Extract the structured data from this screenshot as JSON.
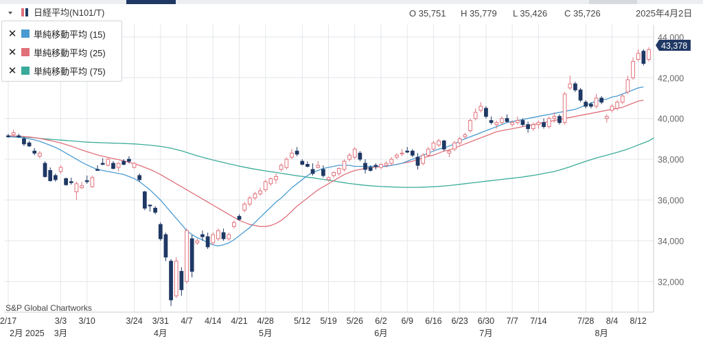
{
  "header": {
    "title": "日経平均(N101/T)",
    "open": "O 35,751",
    "high": "H 35,779",
    "low": "L 35,426",
    "close": "C 35,726",
    "date": "2025年4月2日",
    "last_price": "43,378"
  },
  "legend": {
    "items": [
      {
        "label": "単純移動平均 (15)",
        "color": "#4a9bd1"
      },
      {
        "label": "単純移動平均 (25)",
        "color": "#e0707a"
      },
      {
        "label": "単純移動平均 (75)",
        "color": "#3aab9a"
      }
    ]
  },
  "watermark": "S&P Global Chartworks",
  "colors": {
    "up": "#e0707a",
    "down": "#1f3864",
    "grid": "#e4e6ea",
    "price_tag": "#1f3864"
  },
  "chart_data": {
    "type": "candlestick",
    "yticks": [
      "44,000",
      "42,000",
      "40,000",
      "38,000",
      "36,000",
      "34,000",
      "32,000"
    ],
    "ytick_values": [
      44000,
      42000,
      40000,
      38000,
      36000,
      34000,
      32000
    ],
    "ylim": [
      30500,
      44600
    ],
    "xticks": [
      "2/17",
      "3/3",
      "3/10",
      "3/24",
      "3/31",
      "4/7",
      "4/14",
      "4/21",
      "4/28",
      "5/12",
      "5/19",
      "5/26",
      "6/2",
      "6/9",
      "6/16",
      "6/23",
      "6/30",
      "7/7",
      "7/14",
      "7/28",
      "8/4",
      "8/12"
    ],
    "xtick_index": [
      0,
      10,
      15,
      24,
      29,
      34,
      39,
      44,
      49,
      56,
      61,
      66,
      71,
      76,
      81,
      86,
      91,
      96,
      101,
      110,
      115,
      120
    ],
    "month_labels": [
      "2月 2025",
      "3月",
      "4月",
      "5月",
      "6月",
      "7月",
      "8月"
    ],
    "month_index": [
      0,
      10,
      29,
      49,
      71,
      91,
      113
    ],
    "candles": [
      {
        "o": 39150,
        "h": 39250,
        "l": 39050,
        "c": 39100
      },
      {
        "o": 39200,
        "h": 39450,
        "l": 39100,
        "c": 39300
      },
      {
        "o": 39150,
        "h": 39250,
        "l": 39050,
        "c": 39100
      },
      {
        "o": 39000,
        "h": 39100,
        "l": 38650,
        "c": 38750
      },
      {
        "o": 38800,
        "h": 38900,
        "l": 38600,
        "c": 38650
      },
      {
        "o": 38400,
        "h": 38550,
        "l": 38200,
        "c": 38300
      },
      {
        "o": 38150,
        "h": 38400,
        "l": 38050,
        "c": 38300
      },
      {
        "o": 37800,
        "h": 37900,
        "l": 37100,
        "c": 37150
      },
      {
        "o": 37450,
        "h": 37600,
        "l": 36900,
        "c": 36950
      },
      {
        "o": 37200,
        "h": 37300,
        "l": 36900,
        "c": 37000
      },
      {
        "o": 37400,
        "h": 37700,
        "l": 37300,
        "c": 37600
      },
      {
        "o": 37050,
        "h": 37100,
        "l": 36700,
        "c": 36750
      },
      {
        "o": 36900,
        "h": 37100,
        "l": 36750,
        "c": 36850
      },
      {
        "o": 36400,
        "h": 36900,
        "l": 36000,
        "c": 36800
      },
      {
        "o": 36600,
        "h": 36900,
        "l": 36550,
        "c": 36700
      },
      {
        "o": 36950,
        "h": 37200,
        "l": 36800,
        "c": 36900
      },
      {
        "o": 36650,
        "h": 37200,
        "l": 36600,
        "c": 37100
      },
      {
        "o": 37500,
        "h": 37700,
        "l": 37450,
        "c": 37450
      },
      {
        "o": 37800,
        "h": 38050,
        "l": 37700,
        "c": 37750
      },
      {
        "o": 37700,
        "h": 38050,
        "l": 37650,
        "c": 38000
      },
      {
        "o": 37800,
        "h": 37900,
        "l": 37500,
        "c": 37550
      },
      {
        "o": 37600,
        "h": 37850,
        "l": 37400,
        "c": 37800
      },
      {
        "o": 37900,
        "h": 38000,
        "l": 37700,
        "c": 37750
      },
      {
        "o": 38000,
        "h": 38150,
        "l": 37800,
        "c": 37900
      },
      {
        "o": 37600,
        "h": 37850,
        "l": 37550,
        "c": 37800
      },
      {
        "o": 37200,
        "h": 37300,
        "l": 36900,
        "c": 37000
      },
      {
        "o": 36400,
        "h": 36450,
        "l": 35500,
        "c": 35600
      },
      {
        "o": 35751,
        "h": 35779,
        "l": 35426,
        "c": 35726
      },
      {
        "o": 35600,
        "h": 35700,
        "l": 35300,
        "c": 35400
      },
      {
        "o": 34800,
        "h": 34900,
        "l": 34000,
        "c": 34100
      },
      {
        "o": 34300,
        "h": 34400,
        "l": 33000,
        "c": 33200
      },
      {
        "o": 33000,
        "h": 33100,
        "l": 30800,
        "c": 31100
      },
      {
        "o": 31300,
        "h": 33200,
        "l": 31200,
        "c": 33000
      },
      {
        "o": 32500,
        "h": 32700,
        "l": 31300,
        "c": 31600
      },
      {
        "o": 32000,
        "h": 34600,
        "l": 31900,
        "c": 34500
      },
      {
        "o": 34100,
        "h": 34300,
        "l": 32200,
        "c": 32500
      },
      {
        "o": 33900,
        "h": 34100,
        "l": 33800,
        "c": 34000
      },
      {
        "o": 34300,
        "h": 34500,
        "l": 34000,
        "c": 34200
      },
      {
        "o": 34200,
        "h": 34400,
        "l": 33600,
        "c": 33700
      },
      {
        "o": 33900,
        "h": 34400,
        "l": 33800,
        "c": 34300
      },
      {
        "o": 34100,
        "h": 34600,
        "l": 34000,
        "c": 34500
      },
      {
        "o": 34400,
        "h": 34600,
        "l": 34000,
        "c": 34100
      },
      {
        "o": 34100,
        "h": 34400,
        "l": 34000,
        "c": 34300
      },
      {
        "o": 34700,
        "h": 35000,
        "l": 34600,
        "c": 34900
      },
      {
        "o": 35200,
        "h": 35300,
        "l": 35000,
        "c": 35050
      },
      {
        "o": 35500,
        "h": 35900,
        "l": 35400,
        "c": 35800
      },
      {
        "o": 35800,
        "h": 36200,
        "l": 35700,
        "c": 36100
      },
      {
        "o": 36100,
        "h": 36400,
        "l": 36000,
        "c": 36300
      },
      {
        "o": 36300,
        "h": 36600,
        "l": 36200,
        "c": 36450
      },
      {
        "o": 36500,
        "h": 37000,
        "l": 36400,
        "c": 36900
      },
      {
        "o": 36800,
        "h": 37100,
        "l": 36700,
        "c": 37050
      },
      {
        "o": 37000,
        "h": 37300,
        "l": 36800,
        "c": 37150
      },
      {
        "o": 37500,
        "h": 37800,
        "l": 37400,
        "c": 37700
      },
      {
        "o": 37600,
        "h": 38100,
        "l": 37500,
        "c": 38000
      },
      {
        "o": 38100,
        "h": 38500,
        "l": 38000,
        "c": 38300
      },
      {
        "o": 38400,
        "h": 38600,
        "l": 38150,
        "c": 38250
      },
      {
        "o": 37900,
        "h": 38000,
        "l": 37700,
        "c": 37750
      },
      {
        "o": 37750,
        "h": 37900,
        "l": 37600,
        "c": 37650
      },
      {
        "o": 37500,
        "h": 37800,
        "l": 37200,
        "c": 37300
      },
      {
        "o": 37600,
        "h": 37900,
        "l": 37550,
        "c": 37700
      },
      {
        "o": 37500,
        "h": 37700,
        "l": 37100,
        "c": 37200
      },
      {
        "o": 37000,
        "h": 37150,
        "l": 36900,
        "c": 37100
      },
      {
        "o": 37200,
        "h": 37400,
        "l": 37100,
        "c": 37350
      },
      {
        "o": 37300,
        "h": 37600,
        "l": 37200,
        "c": 37550
      },
      {
        "o": 37500,
        "h": 38000,
        "l": 37400,
        "c": 37900
      },
      {
        "o": 38000,
        "h": 38300,
        "l": 37900,
        "c": 38200
      },
      {
        "o": 38100,
        "h": 38600,
        "l": 38000,
        "c": 38500
      },
      {
        "o": 38300,
        "h": 38400,
        "l": 37900,
        "c": 38000
      },
      {
        "o": 37800,
        "h": 38000,
        "l": 37300,
        "c": 37500
      },
      {
        "o": 37600,
        "h": 37700,
        "l": 37400,
        "c": 37450
      },
      {
        "o": 37700,
        "h": 37800,
        "l": 37500,
        "c": 37650
      },
      {
        "o": 37600,
        "h": 37800,
        "l": 37500,
        "c": 37750
      },
      {
        "o": 37700,
        "h": 37900,
        "l": 37600,
        "c": 37800
      },
      {
        "o": 37800,
        "h": 38100,
        "l": 37700,
        "c": 38000
      },
      {
        "o": 38100,
        "h": 38300,
        "l": 38000,
        "c": 38200
      },
      {
        "o": 38300,
        "h": 38500,
        "l": 38150,
        "c": 38300
      },
      {
        "o": 38400,
        "h": 38600,
        "l": 38300,
        "c": 38350
      },
      {
        "o": 38400,
        "h": 38500,
        "l": 38100,
        "c": 38200
      },
      {
        "o": 38100,
        "h": 38300,
        "l": 37500,
        "c": 37700
      },
      {
        "o": 37800,
        "h": 38300,
        "l": 37700,
        "c": 38200
      },
      {
        "o": 38200,
        "h": 38600,
        "l": 38100,
        "c": 38500
      },
      {
        "o": 38500,
        "h": 38900,
        "l": 38400,
        "c": 38800
      },
      {
        "o": 38700,
        "h": 39000,
        "l": 38600,
        "c": 38900
      },
      {
        "o": 38900,
        "h": 38950,
        "l": 38400,
        "c": 38500
      },
      {
        "o": 38300,
        "h": 38500,
        "l": 38100,
        "c": 38400
      },
      {
        "o": 38500,
        "h": 38900,
        "l": 38400,
        "c": 38800
      },
      {
        "o": 38800,
        "h": 39100,
        "l": 38700,
        "c": 39000
      },
      {
        "o": 39100,
        "h": 39300,
        "l": 39000,
        "c": 39200
      },
      {
        "o": 39400,
        "h": 40000,
        "l": 39300,
        "c": 39900
      },
      {
        "o": 40000,
        "h": 40500,
        "l": 39900,
        "c": 40300
      },
      {
        "o": 40400,
        "h": 40800,
        "l": 40300,
        "c": 40600
      },
      {
        "o": 40500,
        "h": 40600,
        "l": 40000,
        "c": 40100
      },
      {
        "o": 39900,
        "h": 40100,
        "l": 39700,
        "c": 39800
      },
      {
        "o": 39700,
        "h": 39900,
        "l": 39500,
        "c": 39800
      },
      {
        "o": 39800,
        "h": 40100,
        "l": 39700,
        "c": 40000
      },
      {
        "o": 40000,
        "h": 40200,
        "l": 39800,
        "c": 39850
      },
      {
        "o": 39700,
        "h": 39900,
        "l": 39600,
        "c": 39800
      },
      {
        "o": 39800,
        "h": 40100,
        "l": 39700,
        "c": 39900
      },
      {
        "o": 39900,
        "h": 40000,
        "l": 39600,
        "c": 39700
      },
      {
        "o": 39700,
        "h": 39850,
        "l": 39300,
        "c": 39500
      },
      {
        "o": 39500,
        "h": 39800,
        "l": 39400,
        "c": 39700
      },
      {
        "o": 39700,
        "h": 39900,
        "l": 39500,
        "c": 39800
      },
      {
        "o": 39800,
        "h": 40000,
        "l": 39500,
        "c": 39600
      },
      {
        "o": 39600,
        "h": 40100,
        "l": 39500,
        "c": 40000
      },
      {
        "o": 40000,
        "h": 40300,
        "l": 39800,
        "c": 40100
      },
      {
        "o": 40100,
        "h": 40200,
        "l": 39700,
        "c": 39800
      },
      {
        "o": 39800,
        "h": 41300,
        "l": 39700,
        "c": 41200
      },
      {
        "o": 41500,
        "h": 42100,
        "l": 41400,
        "c": 41700
      },
      {
        "o": 41700,
        "h": 41800,
        "l": 41300,
        "c": 41400
      },
      {
        "o": 41400,
        "h": 41500,
        "l": 40800,
        "c": 40900
      },
      {
        "o": 40800,
        "h": 40900,
        "l": 40500,
        "c": 40600
      },
      {
        "o": 40700,
        "h": 40800,
        "l": 40500,
        "c": 40600
      },
      {
        "o": 40600,
        "h": 41200,
        "l": 40500,
        "c": 41000
      },
      {
        "o": 41000,
        "h": 41100,
        "l": 40700,
        "c": 40800
      },
      {
        "o": 40000,
        "h": 40200,
        "l": 39800,
        "c": 40100
      },
      {
        "o": 40400,
        "h": 40700,
        "l": 40300,
        "c": 40600
      },
      {
        "o": 40500,
        "h": 40900,
        "l": 40400,
        "c": 40800
      },
      {
        "o": 40800,
        "h": 41200,
        "l": 40700,
        "c": 41100
      },
      {
        "o": 41300,
        "h": 42100,
        "l": 41200,
        "c": 41900
      },
      {
        "o": 42000,
        "h": 43000,
        "l": 41900,
        "c": 42800
      },
      {
        "o": 42900,
        "h": 43400,
        "l": 42800,
        "c": 43200
      },
      {
        "o": 43300,
        "h": 43400,
        "l": 42600,
        "c": 42700
      },
      {
        "o": 42900,
        "h": 43500,
        "l": 42800,
        "c": 43378
      }
    ],
    "sma15": [
      39100,
      39090,
      39070,
      39040,
      39000,
      38950,
      38880,
      38780,
      38680,
      38580,
      38450,
      38300,
      38150,
      38000,
      37850,
      37720,
      37600,
      37500,
      37450,
      37400,
      37350,
      37300,
      37250,
      37150,
      37050,
      36900,
      36700,
      36500,
      36250,
      36000,
      35700,
      35400,
      35100,
      34800,
      34500,
      34300,
      34150,
      34050,
      33900,
      33800,
      33750,
      33800,
      33900,
      34050,
      34250,
      34450,
      34650,
      34900,
      35150,
      35400,
      35650,
      35900,
      36100,
      36350,
      36600,
      36800,
      37000,
      37200,
      37350,
      37450,
      37550,
      37600,
      37650,
      37700,
      37700,
      37700,
      37650,
      37650,
      37650,
      37650,
      37650,
      37650,
      37650,
      37700,
      37750,
      37800,
      37900,
      38000,
      38100,
      38200,
      38300,
      38400,
      38500,
      38550,
      38650,
      38750,
      38900,
      39000,
      39100,
      39200,
      39300,
      39400,
      39500,
      39600,
      39700,
      39800,
      39850,
      39900,
      39950,
      40000,
      40050,
      40100,
      40150,
      40200,
      40250,
      40300,
      40350,
      40400,
      40450,
      40550,
      40650,
      40750,
      40850,
      40900,
      40950,
      41050,
      41100,
      41200,
      41300,
      41400,
      41500,
      41550
    ],
    "sma25": [
      39150,
      39140,
      39130,
      39110,
      39090,
      39060,
      39020,
      38970,
      38920,
      38860,
      38800,
      38720,
      38640,
      38550,
      38460,
      38370,
      38290,
      38210,
      38150,
      38090,
      38030,
      37980,
      37920,
      37850,
      37780,
      37700,
      37600,
      37500,
      37380,
      37250,
      37100,
      36950,
      36800,
      36650,
      36500,
      36350,
      36200,
      36050,
      35900,
      35750,
      35600,
      35450,
      35300,
      35150,
      35000,
      34900,
      34800,
      34750,
      34700,
      34700,
      34750,
      34850,
      35000,
      35200,
      35450,
      35700,
      35900,
      36100,
      36300,
      36500,
      36650,
      36800,
      36950,
      37100,
      37250,
      37350,
      37450,
      37500,
      37550,
      37600,
      37600,
      37650,
      37650,
      37700,
      37750,
      37800,
      37850,
      37900,
      38000,
      38050,
      38150,
      38200,
      38300,
      38400,
      38450,
      38550,
      38650,
      38750,
      38850,
      38950,
      39050,
      39150,
      39250,
      39350,
      39400,
      39450,
      39500,
      39550,
      39600,
      39650,
      39700,
      39750,
      39800,
      39850,
      39900,
      39950,
      40000,
      40050,
      40100,
      40150,
      40200,
      40250,
      40300,
      40350,
      40400,
      40450,
      40500,
      40550,
      40650,
      40750,
      40850,
      40900
    ],
    "sma75": [
      39150,
      39130,
      39110,
      39090,
      39070,
      39050,
      39020,
      39000,
      38980,
      38960,
      38940,
      38920,
      38900,
      38880,
      38860,
      38840,
      38830,
      38820,
      38810,
      38800,
      38790,
      38780,
      38770,
      38760,
      38750,
      38730,
      38710,
      38690,
      38660,
      38630,
      38590,
      38540,
      38480,
      38410,
      38330,
      38250,
      38170,
      38100,
      38030,
      37960,
      37900,
      37840,
      37780,
      37720,
      37660,
      37610,
      37560,
      37510,
      37470,
      37430,
      37390,
      37350,
      37310,
      37270,
      37230,
      37190,
      37160,
      37120,
      37090,
      37050,
      37010,
      36970,
      36930,
      36890,
      36850,
      36810,
      36780,
      36750,
      36720,
      36700,
      36680,
      36660,
      36650,
      36640,
      36630,
      36620,
      36620,
      36620,
      36620,
      36630,
      36640,
      36650,
      36670,
      36690,
      36710,
      36740,
      36770,
      36800,
      36830,
      36860,
      36890,
      36920,
      36950,
      36980,
      37010,
      37040,
      37070,
      37100,
      37130,
      37170,
      37210,
      37250,
      37300,
      37350,
      37400,
      37470,
      37550,
      37630,
      37720,
      37810,
      37900,
      37980,
      38060,
      38130,
      38200,
      38270,
      38340,
      38420,
      38500,
      38600,
      38700,
      38800,
      38900,
      39050
    ]
  }
}
